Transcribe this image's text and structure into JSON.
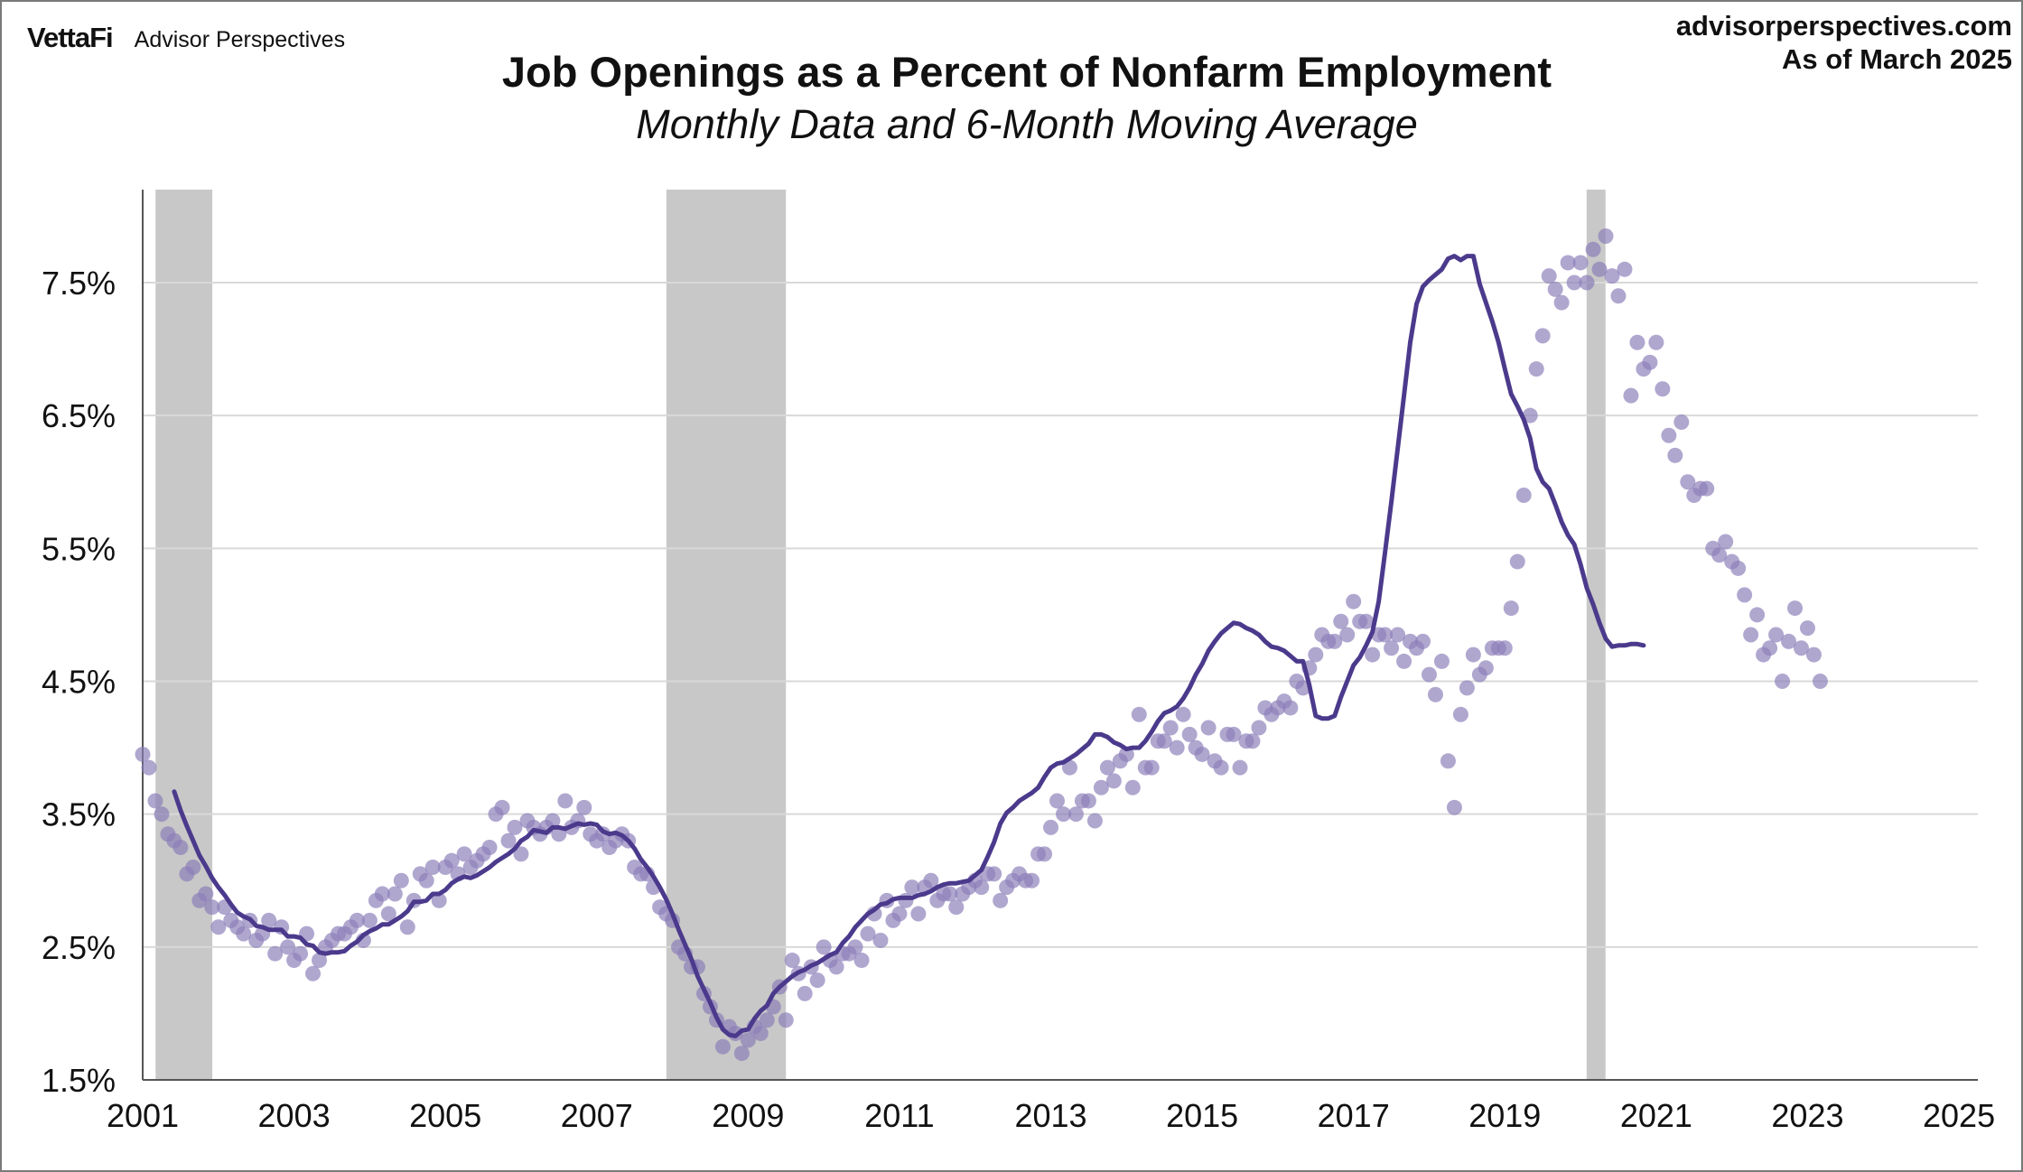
{
  "brand": {
    "logo": "VettaFi",
    "name": "Advisor Perspectives"
  },
  "source": {
    "site": "advisorperspectives.com",
    "as_of": "As of March 2025"
  },
  "chart_data": {
    "type": "scatter+line",
    "title": "Job Openings as a Percent of Nonfarm Employment",
    "subtitle": "Monthly Data and 6-Month Moving Average",
    "xlabel": "",
    "ylabel": "",
    "xlim": [
      2001.0,
      2025.25
    ],
    "ylim": [
      1.5,
      8.2
    ],
    "y_ticks": [
      1.5,
      2.5,
      3.5,
      4.5,
      5.5,
      6.5,
      7.5
    ],
    "y_tick_labels": [
      "1.5%",
      "2.5%",
      "3.5%",
      "4.5%",
      "5.5%",
      "6.5%",
      "7.5%"
    ],
    "x_ticks": [
      2001,
      2003,
      2005,
      2007,
      2009,
      2011,
      2013,
      2015,
      2017,
      2019,
      2021,
      2023,
      2025
    ],
    "x_tick_labels": [
      "2001",
      "2003",
      "2005",
      "2007",
      "2009",
      "2011",
      "2013",
      "2015",
      "2017",
      "2019",
      "2021",
      "2023",
      "2025"
    ],
    "grid": "horizontal",
    "recessions": [
      [
        2001.17,
        2001.92
      ],
      [
        2007.92,
        2009.5
      ],
      [
        2020.08,
        2020.33
      ]
    ],
    "colors": {
      "dots": "#8a7db8",
      "line": "#4b3a8c",
      "recession": "#c8c8c8",
      "grid": "#d9d9d9"
    },
    "series": [
      {
        "kind": "monthly",
        "start": "2001-01",
        "values": [
          3.95,
          3.85,
          3.6,
          3.5,
          3.35,
          3.3,
          3.25,
          3.05,
          3.1,
          2.85,
          2.9,
          2.8,
          2.65,
          2.8,
          2.7,
          2.65,
          2.6,
          2.7,
          2.55,
          2.6,
          2.7,
          2.45,
          2.65,
          2.5,
          2.4,
          2.45,
          2.6,
          2.3,
          2.4,
          2.5,
          2.55,
          2.6,
          2.6,
          2.65,
          2.7,
          2.55,
          2.7,
          2.85,
          2.9,
          2.75,
          2.9,
          3.0,
          2.65,
          2.85,
          3.05,
          3.0,
          3.1,
          2.85,
          3.1,
          3.15,
          3.05,
          3.2,
          3.1,
          3.15,
          3.2,
          3.25,
          3.5,
          3.55,
          3.3,
          3.4,
          3.2,
          3.45,
          3.4,
          3.35,
          3.4,
          3.45,
          3.35,
          3.6,
          3.4,
          3.45,
          3.55,
          3.35,
          3.3,
          3.35,
          3.25,
          3.3,
          3.35,
          3.3,
          3.1,
          3.05,
          3.05,
          2.95,
          2.8,
          2.75,
          2.7,
          2.5,
          2.45,
          2.35,
          2.35,
          2.15,
          2.05,
          1.95,
          1.75,
          1.9,
          1.85,
          1.7,
          1.8,
          1.9,
          1.85,
          1.95,
          2.05,
          2.2,
          1.95,
          2.4,
          2.3,
          2.15,
          2.35,
          2.25,
          2.5,
          2.4,
          2.35,
          2.45,
          2.45,
          2.5,
          2.4,
          2.6,
          2.75,
          2.55,
          2.85,
          2.7,
          2.75,
          2.85,
          2.95,
          2.75,
          2.95,
          3.0,
          2.85,
          2.9,
          2.9,
          2.8,
          2.9,
          2.95,
          3.0,
          2.95,
          3.05,
          3.05,
          2.85,
          2.95,
          3.0,
          3.05,
          3.0,
          3.0,
          3.2,
          3.2,
          3.4,
          3.6,
          3.5,
          3.85,
          3.5,
          3.6,
          3.6,
          3.45,
          3.7,
          3.85,
          3.75,
          3.9,
          3.95,
          3.7,
          4.25,
          3.85,
          3.85,
          4.05,
          4.05,
          4.15,
          4.0,
          4.25,
          4.1,
          4.0,
          3.95,
          4.15,
          3.9,
          3.85,
          4.1,
          4.1,
          3.85,
          4.05,
          4.05,
          4.15,
          4.3,
          4.25,
          4.3,
          4.35,
          4.3,
          4.5,
          4.45,
          4.6,
          4.7,
          4.85,
          4.8,
          4.8,
          4.95,
          4.85,
          5.1,
          4.95,
          4.95,
          4.7,
          4.85,
          4.85,
          4.75,
          4.85,
          4.65,
          4.8,
          4.75,
          4.8,
          4.55,
          4.4,
          4.65,
          3.9,
          3.55,
          4.25,
          4.45,
          4.7,
          4.55,
          4.6,
          4.75,
          4.75,
          4.75,
          5.05,
          5.4,
          5.9,
          6.5,
          6.85,
          7.1,
          7.55,
          7.45,
          7.35,
          7.65,
          7.5,
          7.65,
          7.5,
          7.75,
          7.6,
          7.85,
          7.55,
          7.4,
          7.6,
          6.65,
          7.05,
          6.85,
          6.9,
          7.05,
          6.7,
          6.35,
          6.2,
          6.45,
          6.0,
          5.9,
          5.95,
          5.95,
          5.5,
          5.45,
          5.55,
          5.4,
          5.35,
          5.15,
          4.85,
          5.0,
          4.7,
          4.75,
          4.85,
          4.5,
          4.8,
          5.05,
          4.75,
          4.9,
          4.7,
          4.5
        ]
      },
      {
        "kind": "six_month_moving_average",
        "start": "2001-06",
        "values": [
          3.67,
          3.53,
          3.41,
          3.3,
          3.19,
          3.11,
          3.02,
          2.95,
          2.89,
          2.82,
          2.76,
          2.73,
          2.71,
          2.66,
          2.65,
          2.63,
          2.63,
          2.63,
          2.58,
          2.58,
          2.57,
          2.52,
          2.51,
          2.46,
          2.45,
          2.46,
          2.46,
          2.47,
          2.51,
          2.54,
          2.59,
          2.62,
          2.64,
          2.67,
          2.67,
          2.7,
          2.73,
          2.77,
          2.84,
          2.84,
          2.85,
          2.9,
          2.9,
          2.93,
          2.98,
          3.01,
          3.03,
          3.02,
          3.04,
          3.07,
          3.1,
          3.14,
          3.17,
          3.2,
          3.24,
          3.3,
          3.33,
          3.38,
          3.37,
          3.36,
          3.4,
          3.4,
          3.39,
          3.41,
          3.43,
          3.42,
          3.43,
          3.42,
          3.37,
          3.35,
          3.36,
          3.34,
          3.3,
          3.24,
          3.16,
          3.1,
          3.03,
          2.95,
          2.86,
          2.75,
          2.63,
          2.52,
          2.41,
          2.28,
          2.18,
          2.08,
          1.97,
          1.88,
          1.84,
          1.83,
          1.87,
          1.88,
          1.96,
          2.02,
          2.06,
          2.15,
          2.2,
          2.24,
          2.28,
          2.31,
          2.33,
          2.36,
          2.38,
          2.41,
          2.44,
          2.46,
          2.53,
          2.58,
          2.65,
          2.7,
          2.75,
          2.78,
          2.82,
          2.83,
          2.86,
          2.87,
          2.87,
          2.87,
          2.89,
          2.9,
          2.92,
          2.95,
          2.97,
          2.98,
          2.98,
          2.99,
          3.0,
          3.04,
          3.08,
          3.18,
          3.29,
          3.43,
          3.51,
          3.55,
          3.6,
          3.63,
          3.66,
          3.7,
          3.78,
          3.85,
          3.88,
          3.89,
          3.92,
          3.95,
          3.99,
          4.03,
          4.1,
          4.1,
          4.08,
          4.04,
          4.02,
          3.99,
          4.0,
          4.0,
          4.05,
          4.12,
          4.2,
          4.26,
          4.28,
          4.31,
          4.37,
          4.45,
          4.55,
          4.63,
          4.73,
          4.8,
          4.86,
          4.9,
          4.94,
          4.93,
          4.9,
          4.88,
          4.85,
          4.8,
          4.76,
          4.75,
          4.73,
          4.69,
          4.65,
          4.65,
          4.47,
          4.24,
          4.22,
          4.22,
          4.24,
          4.38,
          4.5,
          4.62,
          4.68,
          4.77,
          4.87,
          5.1,
          5.47,
          5.85,
          6.25,
          6.65,
          7.05,
          7.34,
          7.47,
          7.52,
          7.56,
          7.6,
          7.68,
          7.7,
          7.67,
          7.7,
          7.7,
          7.49,
          7.35,
          7.21,
          7.05,
          6.85,
          6.66,
          6.57,
          6.47,
          6.33,
          6.1,
          6.0,
          5.95,
          5.83,
          5.7,
          5.6,
          5.53,
          5.38,
          5.2,
          5.08,
          4.94,
          4.82,
          4.76,
          4.77,
          4.77,
          4.78,
          4.78,
          4.77
        ]
      }
    ]
  }
}
